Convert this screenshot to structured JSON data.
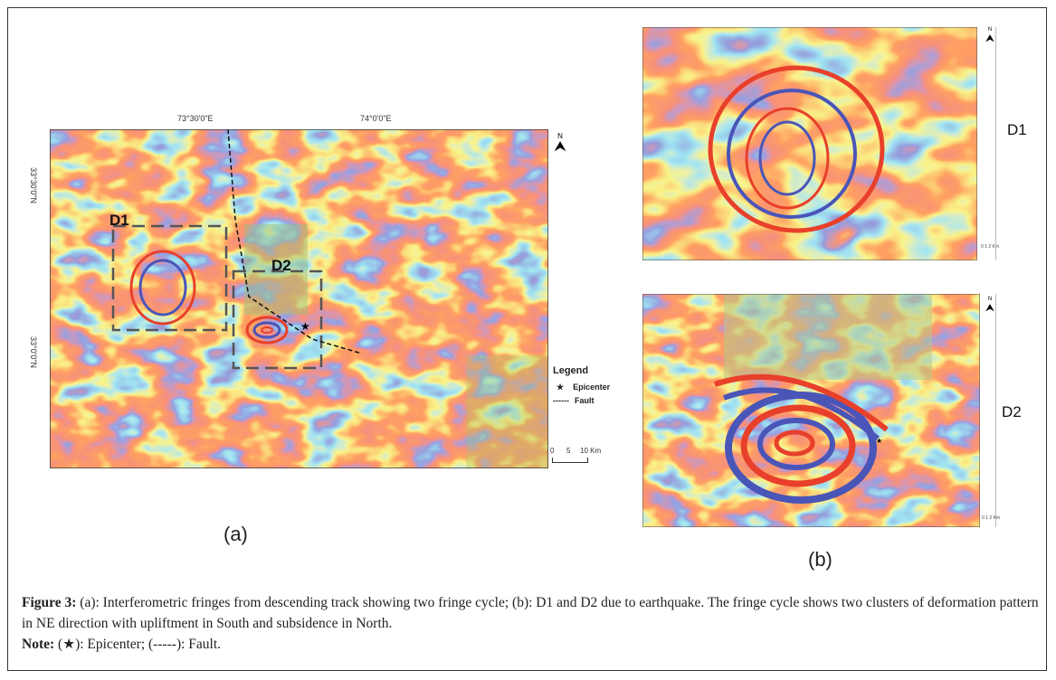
{
  "figure_a": {
    "panel_label": "(a)",
    "lon_labels": [
      "73°30'0\"E",
      "74°0'0\"E"
    ],
    "lat_labels": [
      "33°30'0\"N",
      "33°0'0\"N"
    ],
    "north_label": "N",
    "box_labels": [
      "D1",
      "D2"
    ],
    "legend": {
      "title": "Legend",
      "items": [
        {
          "symbol": "★",
          "label": "Epicenter"
        },
        {
          "symbol": "------",
          "label": "Fault"
        }
      ]
    },
    "scale_bar": {
      "ticks": [
        "0",
        "5",
        "10 Km"
      ]
    }
  },
  "figure_b": {
    "panel_label": "(b)",
    "insets": [
      {
        "label": "D1",
        "north_label": "N",
        "scale": "0 1 2 Km"
      },
      {
        "label": "D2",
        "north_label": "N",
        "scale": "0 1 2 Km"
      }
    ]
  },
  "caption": {
    "title": "Figure 3:",
    "text": " (a): Interferometric fringes from descending track showing two fringe cycle; (b): D1 and D2 due to earthquake. The fringe cycle shows two clusters of deformation pattern in NE direction with upliftment in South and subsidence in North.",
    "note_label": "Note:",
    "note_text": " (★): Epicenter; (-----): Fault."
  },
  "colors": {
    "fringe_yellow": "#f5e829",
    "fringe_red": "#e8402a",
    "fringe_blue": "#4a55b8",
    "fringe_cyan": "#5cc3e8"
  }
}
